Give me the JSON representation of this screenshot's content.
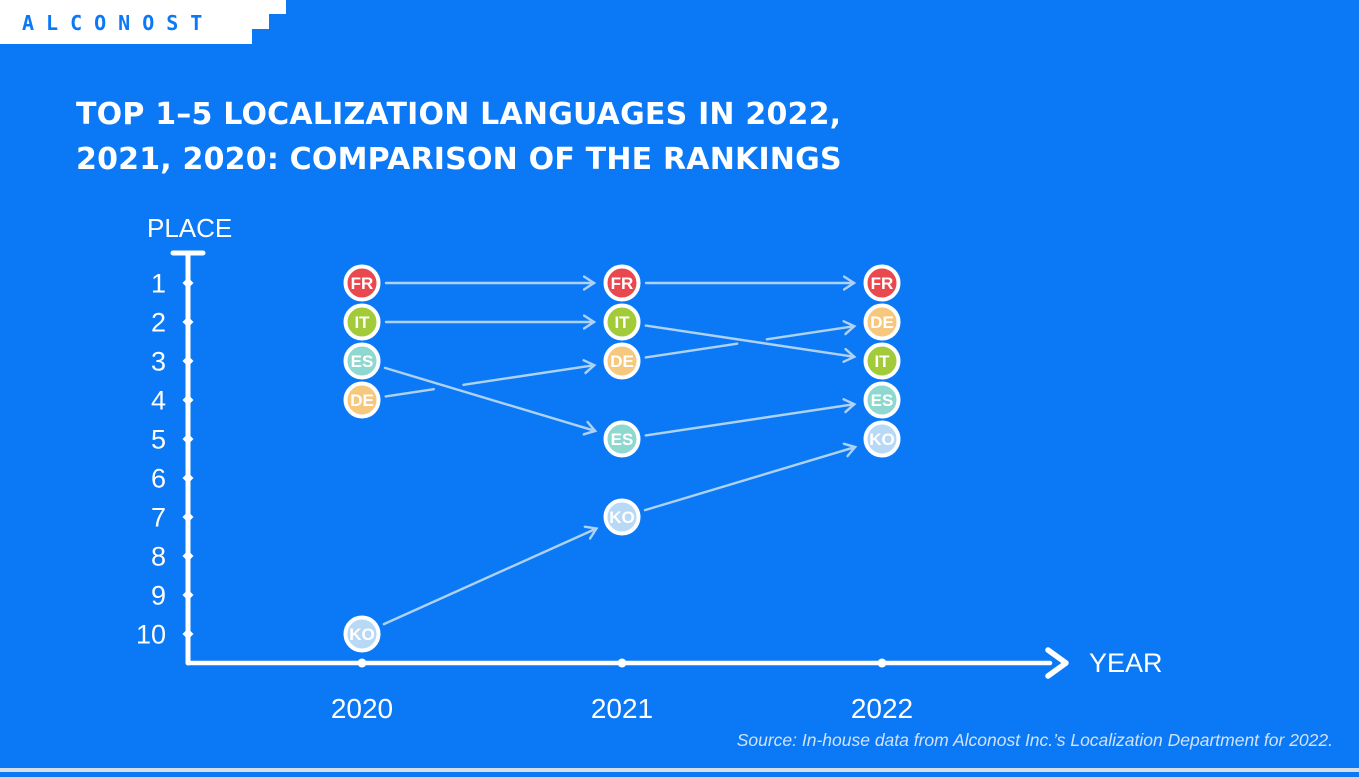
{
  "logo": {
    "text": "ALCONOST"
  },
  "title": {
    "line1": "TOP 1–5 LOCALIZATION LANGUAGES IN 2022,",
    "line2": "2021, 2020: COMPARISON OF THE RANKINGS"
  },
  "source": "Source: In-house data from Alconost Inc.’s Localization Department for 2022.",
  "colors": {
    "background": "#0b79f6",
    "logo_blue": "#0b79f6",
    "logo_bar": "#ffffff",
    "axis": "#ffffff",
    "connector": "#aed2f4",
    "badge_ring": "#ffffff",
    "badge_text": "#ffffff",
    "source_text": "#cfe2fa",
    "bottom_strip": "#d6dee8"
  },
  "chart_data": {
    "type": "line",
    "subtype": "bump-ranking",
    "title": "TOP 1–5 LOCALIZATION LANGUAGES IN 2022, 2021, 2020: COMPARISON OF THE RANKINGS",
    "xlabel": "YEAR",
    "ylabel": "PLACE",
    "categories": [
      "2020",
      "2021",
      "2022"
    ],
    "y_ticks": [
      1,
      2,
      3,
      4,
      5,
      6,
      7,
      8,
      9,
      10
    ],
    "ylim": [
      1,
      10
    ],
    "y_inverted": true,
    "grid": false,
    "legend": "none",
    "series": [
      {
        "name": "FR",
        "values": [
          1,
          1,
          1
        ],
        "color": "#e9484e"
      },
      {
        "name": "IT",
        "values": [
          2,
          2,
          3
        ],
        "color": "#a3cb39"
      },
      {
        "name": "ES",
        "values": [
          3,
          5,
          4
        ],
        "color": "#8fd8cf"
      },
      {
        "name": "DE",
        "values": [
          4,
          3,
          2
        ],
        "color": "#f6c87e"
      },
      {
        "name": "KO",
        "values": [
          10,
          7,
          5
        ],
        "color": "#b7d9f6"
      }
    ]
  }
}
